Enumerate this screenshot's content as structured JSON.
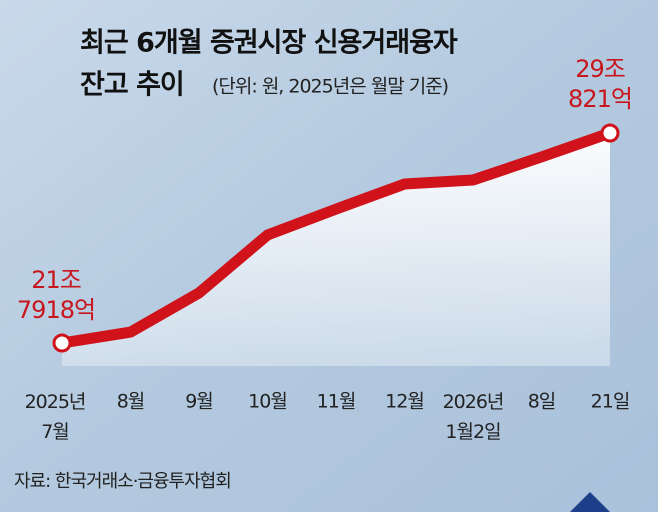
{
  "chart_data": {
    "type": "line",
    "title": [
      "최근 6개월 증권시장 신용거래융자",
      "잔고 추이"
    ],
    "subtitle": "(단위: 원, 2025년은 월말 기준)",
    "source": "자료: 한국거래소·금융투자협회",
    "categories": [
      "2025년\n7월",
      "8월",
      "9월",
      "10월",
      "11월",
      "12월",
      "2026년\n1월2일",
      "8일",
      "21일"
    ],
    "values": [
      21.7918,
      22.17,
      23.53,
      25.54,
      26.44,
      27.31,
      27.45,
      28.25,
      29.0821
    ],
    "value_labels": [
      "21조\n7918억",
      null,
      null,
      null,
      null,
      null,
      null,
      null,
      "29조\n821억"
    ],
    "color": "#d0131b"
  }
}
